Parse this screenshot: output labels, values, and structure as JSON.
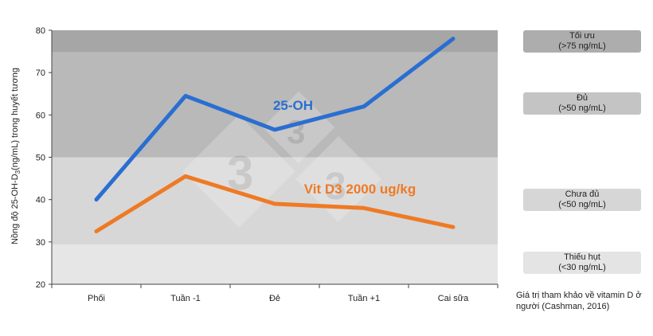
{
  "chart_data": {
    "type": "line",
    "ylabel_main": "Nồng độ 25-OH-D",
    "ylabel_sub": "3",
    "ylabel_rest": "(ng/mL) trong huyết tương",
    "categories": [
      "Phối",
      "Tuần -1",
      "Đẻ",
      "Tuần +1",
      "Cai sữa"
    ],
    "ylim": [
      20,
      80
    ],
    "yticks": [
      "20",
      "30",
      "40",
      "50",
      "60",
      "70",
      "80"
    ],
    "series": [
      {
        "name": "25-OH",
        "color": "#2a6ed1",
        "values": [
          40,
          64.5,
          56.5,
          62,
          78
        ]
      },
      {
        "name": "Vit D3 2000 ug/kg",
        "color": "#ef7a25",
        "values": [
          32.5,
          45.5,
          39,
          38,
          33.5
        ]
      }
    ],
    "bands": [
      {
        "from": 20,
        "to": 29.4,
        "color": "#e6e6e6"
      },
      {
        "from": 29.4,
        "to": 50,
        "color": "#d7d7d7"
      },
      {
        "from": 50,
        "to": 74.8,
        "color": "#b9b9b9"
      },
      {
        "from": 74.8,
        "to": 80,
        "color": "#a6a6a6"
      }
    ]
  },
  "reference": {
    "boxes": [
      {
        "line1": "Tối ưu",
        "line2": "(>75 ng/mL)",
        "color": "#adadad"
      },
      {
        "line1": "Đủ",
        "line2": "(>50 ng/mL)",
        "color": "#c4c4c4"
      },
      {
        "line1": "Chưa đủ",
        "line2": "(<50 ng/mL)",
        "color": "#d6d6d6"
      },
      {
        "line1": "Thiếu hụt",
        "line2": "(<30 ng/mL)",
        "color": "#e4e4e4"
      }
    ],
    "note": "Giá trị tham khảo về vitamin D ở người (Cashman, 2016)"
  }
}
